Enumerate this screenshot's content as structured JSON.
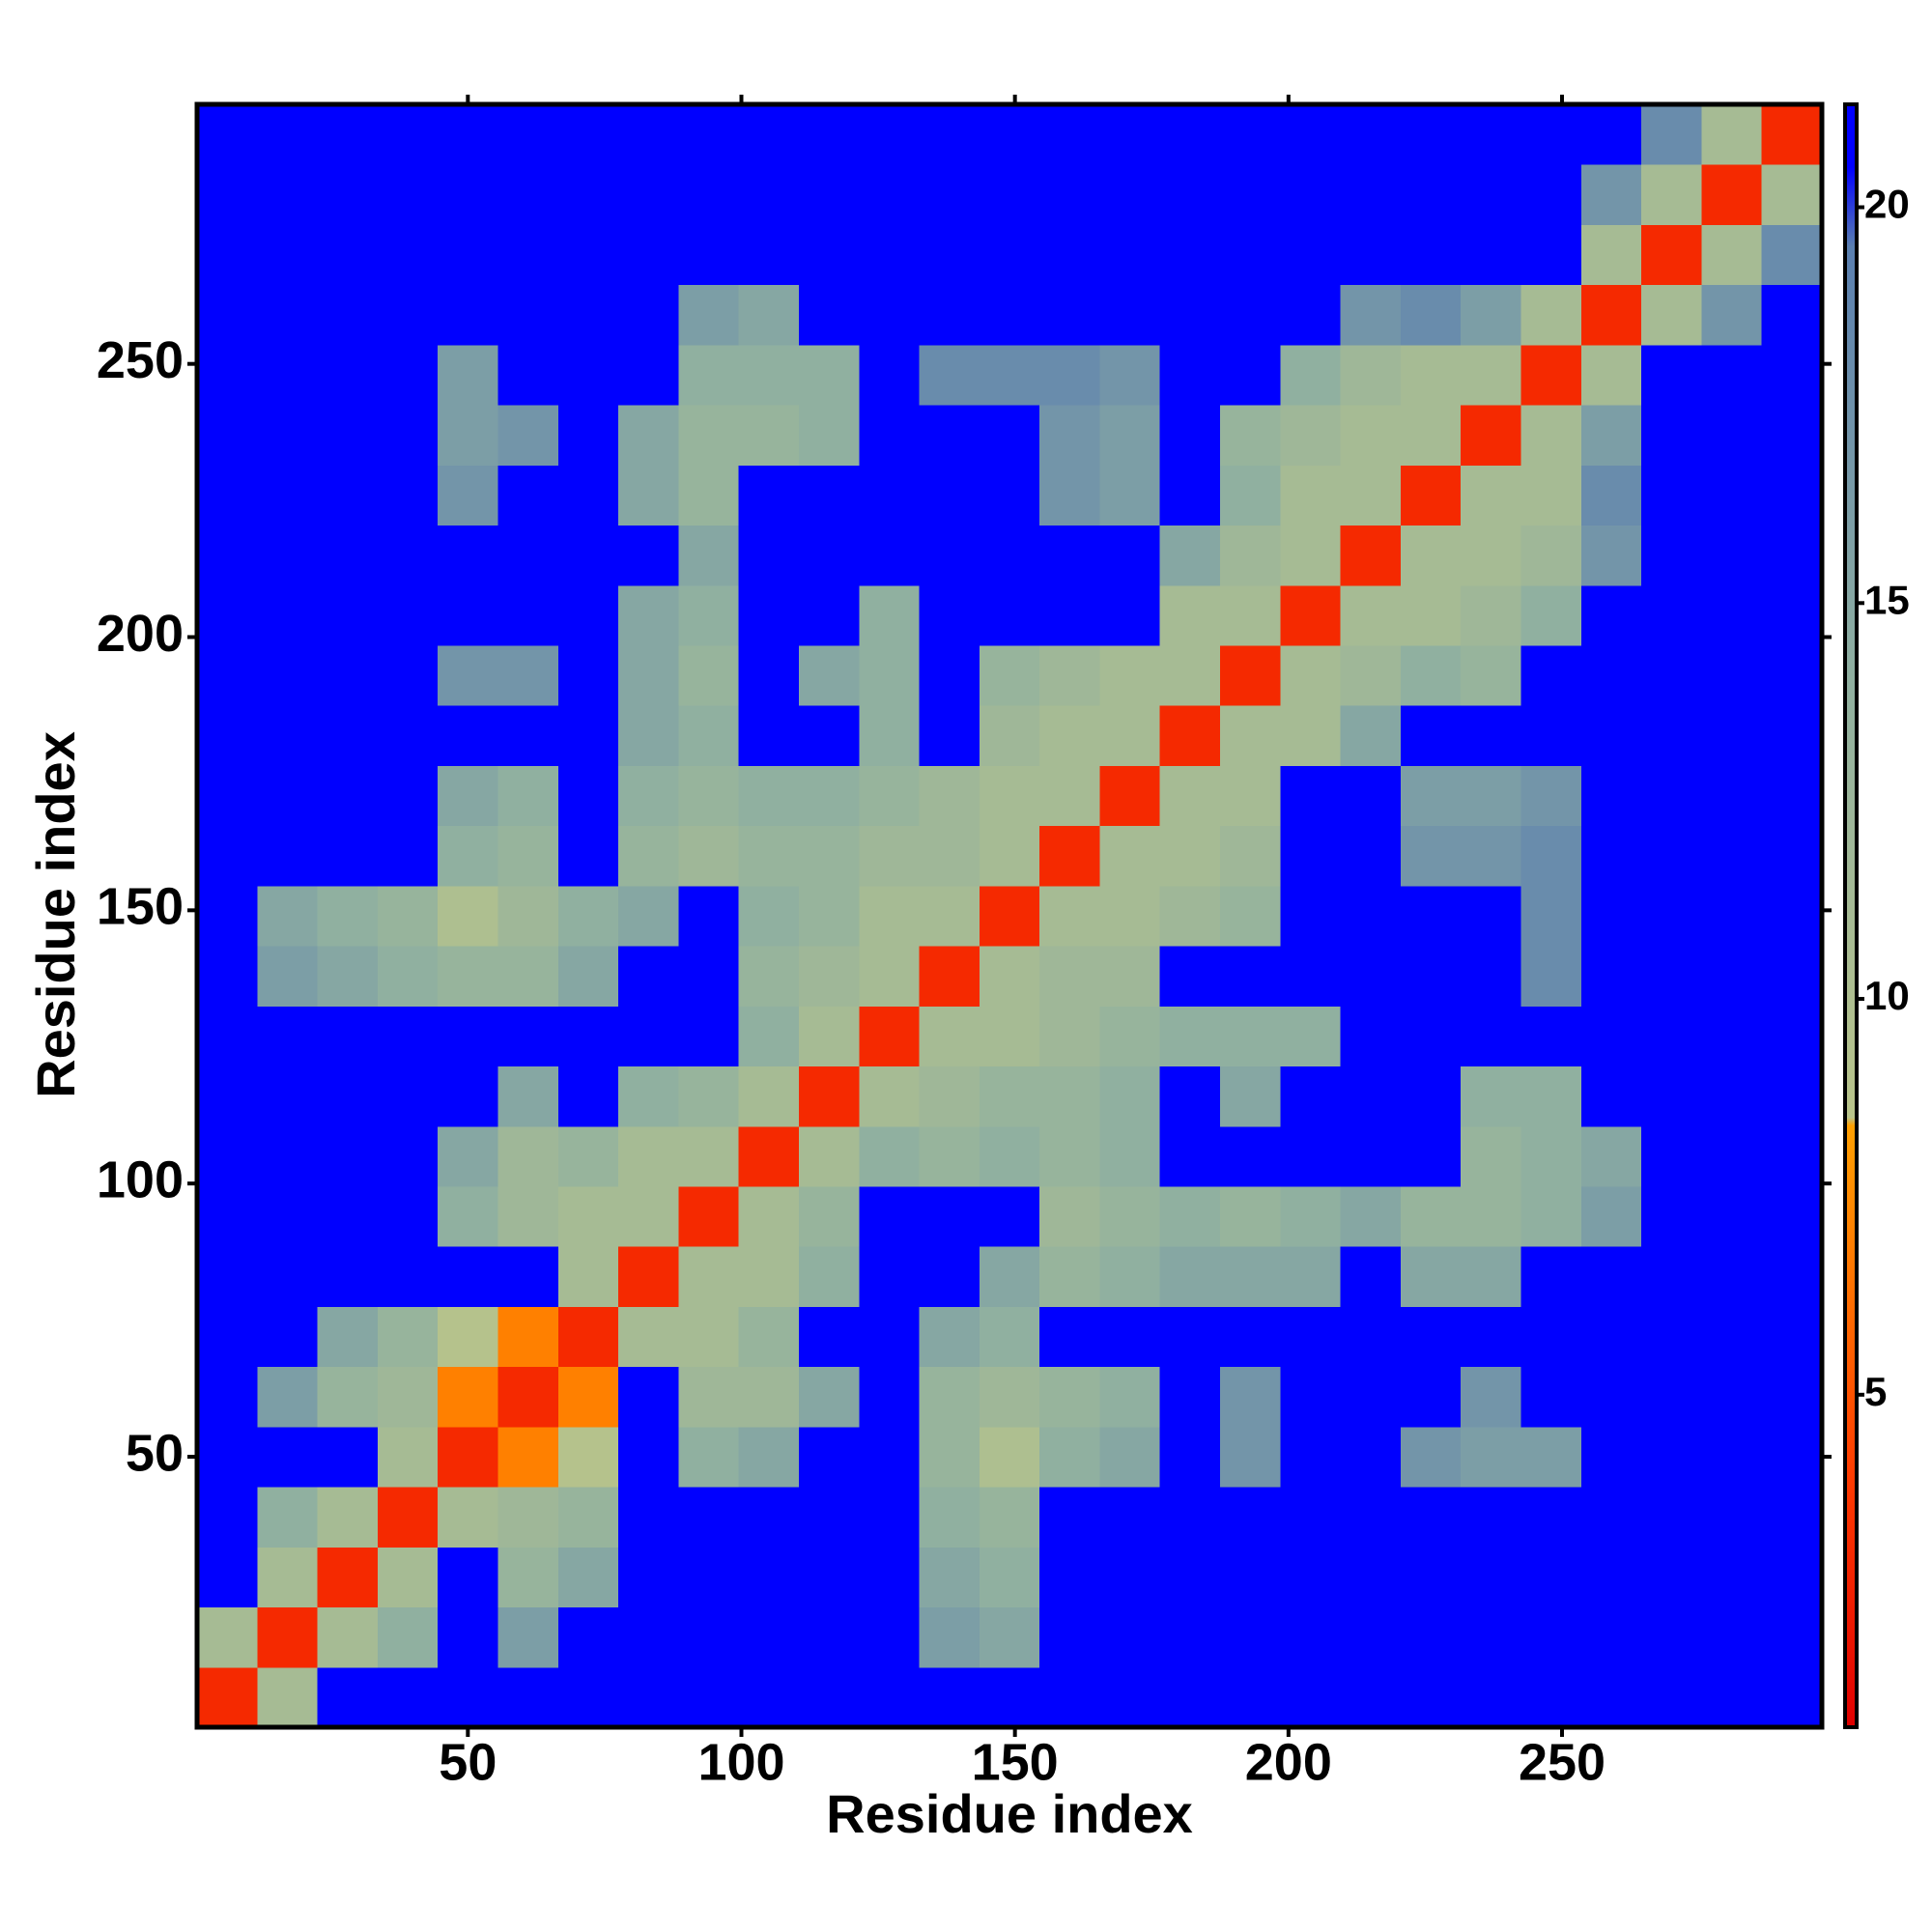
{
  "chart_data": {
    "type": "heatmap",
    "xlabel": "Residue index",
    "ylabel": "Residue index",
    "x": [
      6,
      17,
      28,
      39,
      50,
      61,
      72,
      83,
      94,
      105,
      116,
      127,
      138,
      149,
      160,
      171,
      182,
      193,
      204,
      215,
      226,
      237,
      248,
      259,
      270,
      281,
      292
    ],
    "y": [
      6,
      17,
      28,
      39,
      50,
      61,
      72,
      83,
      94,
      105,
      116,
      127,
      138,
      149,
      160,
      171,
      182,
      193,
      204,
      215,
      226,
      237,
      248,
      259,
      270,
      281,
      292
    ],
    "z": [
      [
        3,
        11,
        21,
        21,
        21,
        21,
        21,
        21,
        21,
        21,
        21,
        21,
        21,
        21,
        21,
        21,
        21,
        21,
        21,
        21,
        21,
        21,
        21,
        21,
        21,
        21,
        21
      ],
      [
        11,
        3,
        11,
        14,
        21,
        16,
        21,
        21,
        21,
        21,
        21,
        21,
        16,
        15,
        21,
        21,
        21,
        21,
        21,
        21,
        21,
        21,
        21,
        21,
        21,
        21,
        21
      ],
      [
        21,
        11,
        3,
        11,
        21,
        13,
        15,
        21,
        21,
        21,
        21,
        21,
        15,
        14,
        21,
        21,
        21,
        21,
        21,
        21,
        21,
        21,
        21,
        21,
        21,
        21,
        21
      ],
      [
        21,
        14,
        11,
        3,
        11,
        12,
        13,
        21,
        21,
        21,
        21,
        21,
        14,
        13,
        21,
        21,
        21,
        21,
        21,
        21,
        21,
        21,
        21,
        21,
        21,
        21,
        21
      ],
      [
        21,
        21,
        21,
        11,
        3,
        7,
        9,
        21,
        14,
        15,
        21,
        21,
        13,
        10,
        14,
        15,
        21,
        17,
        21,
        21,
        17,
        16,
        16,
        21,
        21,
        21,
        21
      ],
      [
        21,
        16,
        13,
        12,
        7,
        3,
        7,
        21,
        12,
        12,
        15,
        21,
        13,
        12,
        13,
        14,
        21,
        17,
        21,
        21,
        21,
        17,
        21,
        21,
        21,
        21,
        21
      ],
      [
        21,
        21,
        15,
        13,
        9,
        7,
        3,
        11,
        11,
        13,
        21,
        21,
        15,
        14,
        21,
        21,
        21,
        21,
        21,
        21,
        21,
        21,
        21,
        21,
        21,
        21,
        21
      ],
      [
        21,
        21,
        21,
        21,
        21,
        21,
        11,
        3,
        11,
        11,
        14,
        21,
        21,
        15,
        13,
        14,
        15,
        15,
        15,
        21,
        15,
        15,
        21,
        21,
        21,
        21,
        21
      ],
      [
        21,
        21,
        21,
        21,
        14,
        12,
        11,
        11,
        3,
        11,
        13,
        21,
        21,
        21,
        12,
        13,
        14,
        13,
        14,
        15,
        13,
        13,
        14,
        16,
        21,
        21,
        21
      ],
      [
        21,
        21,
        21,
        21,
        15,
        12,
        13,
        11,
        11,
        3,
        11,
        14,
        13,
        14,
        13,
        14,
        21,
        21,
        21,
        21,
        21,
        13,
        14,
        15,
        21,
        21,
        21
      ],
      [
        21,
        21,
        21,
        21,
        21,
        15,
        21,
        14,
        13,
        11,
        3,
        11,
        12,
        13,
        13,
        14,
        21,
        15,
        21,
        21,
        21,
        14,
        14,
        21,
        21,
        21,
        21
      ],
      [
        21,
        21,
        21,
        21,
        21,
        21,
        21,
        21,
        21,
        14,
        11,
        3,
        11,
        11,
        12,
        13,
        14,
        14,
        14,
        21,
        21,
        21,
        21,
        21,
        21,
        21,
        21
      ],
      [
        21,
        16,
        15,
        14,
        13,
        13,
        15,
        21,
        21,
        13,
        12,
        11,
        3,
        11,
        12,
        12,
        21,
        21,
        21,
        21,
        21,
        21,
        18,
        21,
        21,
        21,
        21
      ],
      [
        21,
        15,
        14,
        13,
        10,
        12,
        14,
        15,
        21,
        14,
        13,
        11,
        11,
        3,
        11,
        11,
        12,
        13,
        21,
        21,
        21,
        21,
        18,
        21,
        21,
        21,
        21
      ],
      [
        21,
        21,
        21,
        21,
        14,
        13,
        21,
        13,
        12,
        13,
        13,
        12,
        12,
        11,
        3,
        11,
        11,
        12,
        21,
        21,
        17,
        17,
        18,
        21,
        21,
        21,
        21
      ],
      [
        21,
        21,
        21,
        21,
        15,
        14,
        21,
        14,
        13,
        14,
        14,
        13,
        12,
        11,
        11,
        3,
        11,
        11,
        21,
        21,
        16,
        16,
        17,
        21,
        21,
        21,
        21
      ],
      [
        21,
        21,
        21,
        21,
        21,
        21,
        21,
        15,
        14,
        21,
        21,
        14,
        21,
        12,
        11,
        11,
        3,
        11,
        11,
        15,
        21,
        21,
        21,
        21,
        21,
        21,
        21
      ],
      [
        21,
        21,
        21,
        21,
        17,
        17,
        21,
        15,
        13,
        21,
        15,
        14,
        21,
        13,
        12,
        11,
        11,
        3,
        11,
        12,
        14,
        13,
        21,
        21,
        21,
        21,
        21
      ],
      [
        21,
        21,
        21,
        21,
        21,
        21,
        21,
        15,
        14,
        21,
        21,
        14,
        21,
        21,
        21,
        21,
        11,
        11,
        3,
        11,
        11,
        12,
        14,
        21,
        21,
        21,
        21
      ],
      [
        21,
        21,
        21,
        21,
        21,
        21,
        21,
        21,
        15,
        21,
        21,
        21,
        21,
        21,
        21,
        21,
        15,
        12,
        11,
        3,
        11,
        11,
        12,
        17,
        21,
        21,
        21
      ],
      [
        21,
        21,
        21,
        21,
        17,
        21,
        21,
        15,
        13,
        21,
        21,
        21,
        21,
        21,
        17,
        16,
        21,
        14,
        11,
        11,
        3,
        11,
        11,
        18,
        21,
        21,
        21
      ],
      [
        21,
        21,
        21,
        21,
        16,
        17,
        21,
        15,
        13,
        13,
        14,
        21,
        21,
        21,
        17,
        16,
        21,
        13,
        12,
        11,
        11,
        3,
        11,
        16,
        21,
        21,
        21
      ],
      [
        21,
        21,
        21,
        21,
        16,
        21,
        21,
        21,
        14,
        14,
        14,
        21,
        18,
        18,
        18,
        17,
        21,
        21,
        14,
        12,
        11,
        11,
        3,
        11,
        21,
        21,
        21
      ],
      [
        21,
        21,
        21,
        21,
        21,
        21,
        21,
        21,
        16,
        15,
        21,
        21,
        21,
        21,
        21,
        21,
        21,
        21,
        21,
        17,
        18,
        16,
        11,
        3,
        11,
        17,
        21
      ],
      [
        21,
        21,
        21,
        21,
        21,
        21,
        21,
        21,
        21,
        21,
        21,
        21,
        21,
        21,
        21,
        21,
        21,
        21,
        21,
        21,
        21,
        21,
        21,
        11,
        3,
        11,
        18
      ],
      [
        21,
        21,
        21,
        21,
        21,
        21,
        21,
        21,
        21,
        21,
        21,
        21,
        21,
        21,
        21,
        21,
        21,
        21,
        21,
        21,
        21,
        21,
        21,
        17,
        11,
        3,
        11
      ],
      [
        21,
        21,
        21,
        21,
        21,
        21,
        21,
        21,
        21,
        21,
        21,
        21,
        21,
        21,
        21,
        21,
        21,
        21,
        21,
        21,
        21,
        21,
        21,
        21,
        18,
        11,
        3
      ]
    ],
    "xlim": [
      0.5,
      297.5
    ],
    "ylim": [
      0.5,
      297.5
    ],
    "xticks": [
      50,
      100,
      150,
      200,
      250
    ],
    "yticks": [
      50,
      100,
      150,
      200,
      250
    ],
    "clim": [
      0.8,
      21.3
    ],
    "cticks": [
      5,
      10,
      15,
      20
    ],
    "colorscale": [
      [
        0.8,
        "#e00000"
      ],
      [
        4,
        "#ff3c00"
      ],
      [
        8.4,
        "#ffa000"
      ],
      [
        8.5,
        "#b9c48a"
      ],
      [
        14,
        "#90b0a0"
      ],
      [
        19.5,
        "#5a7fb0"
      ],
      [
        20.5,
        "#0000ff"
      ],
      [
        21.3,
        "#0000ff"
      ]
    ]
  }
}
